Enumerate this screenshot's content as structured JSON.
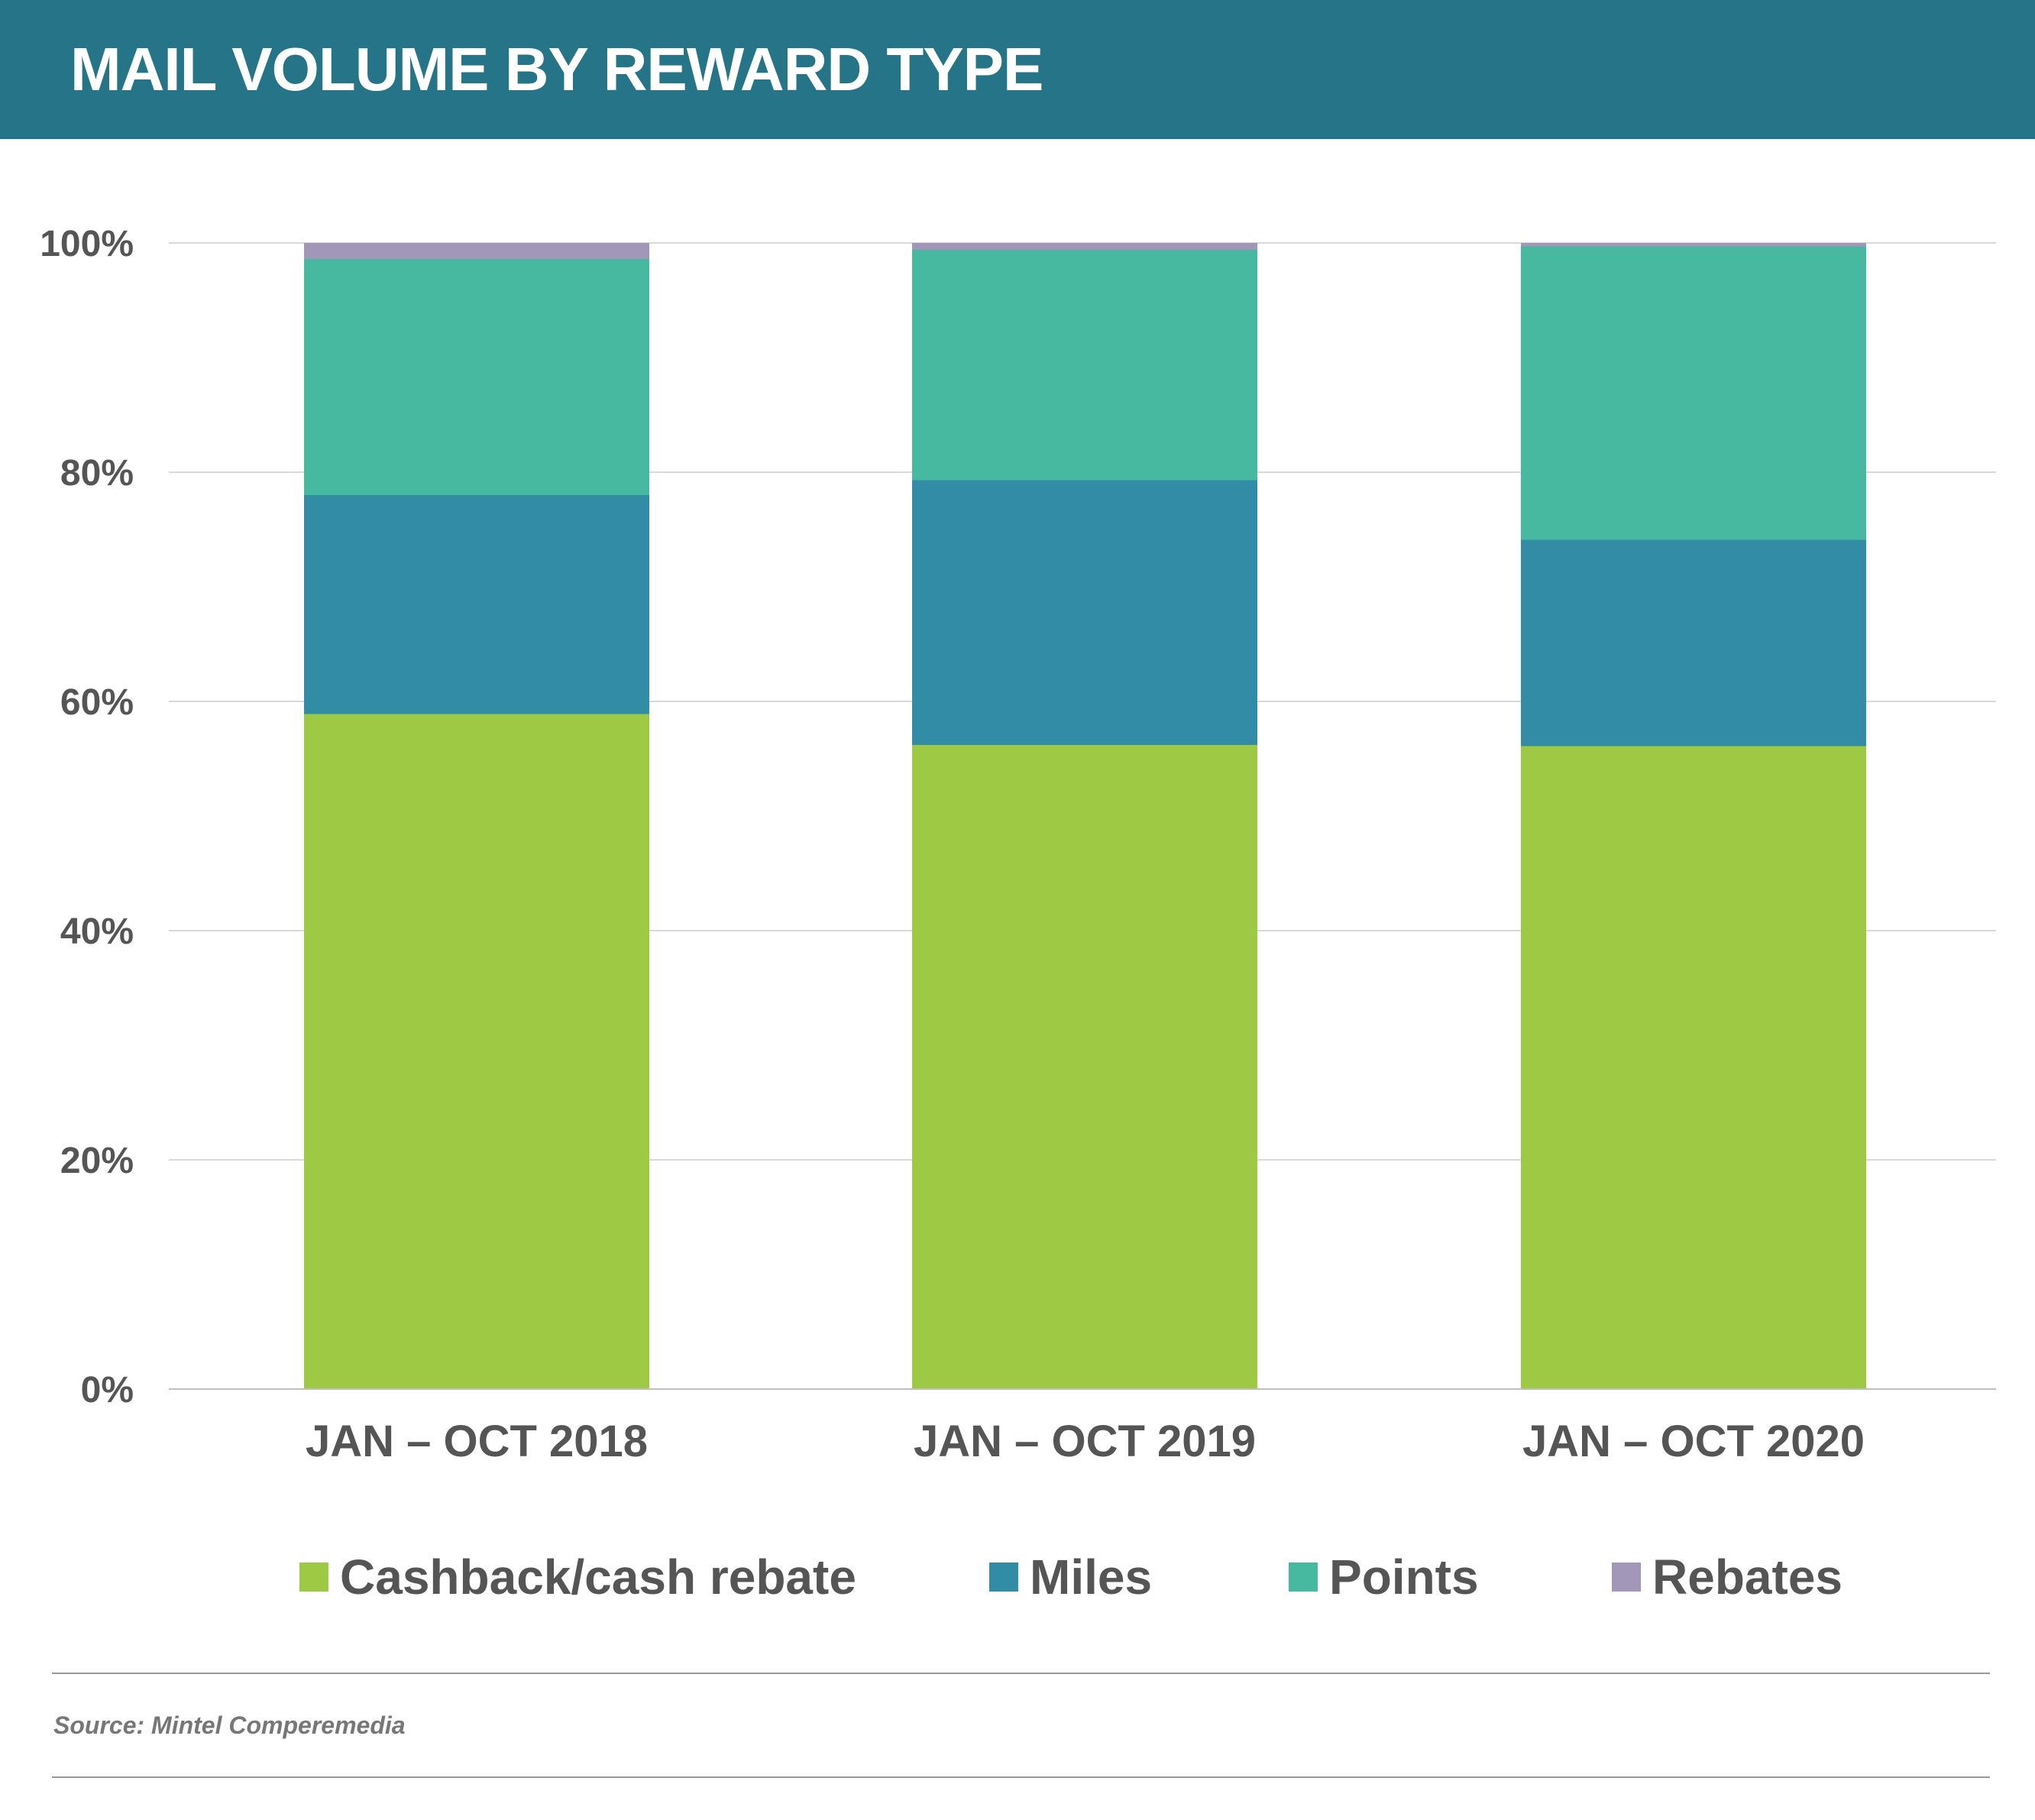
{
  "header": {
    "title": "MAIL VOLUME BY REWARD TYPE"
  },
  "chart_data": {
    "type": "bar",
    "stacked": true,
    "categories": [
      "JAN – OCT 2018",
      "JAN – OCT 2019",
      "JAN – OCT 2020"
    ],
    "series": [
      {
        "name": "Cashback/cash rebate",
        "color": "#9dc945",
        "values": [
          58.9,
          56.2,
          56.1
        ]
      },
      {
        "name": "Miles",
        "color": "#338ca6",
        "values": [
          19.1,
          23.1,
          18.0
        ]
      },
      {
        "name": "Points",
        "color": "#46b9a0",
        "values": [
          20.6,
          20.1,
          25.6
        ]
      },
      {
        "name": "Rebates",
        "color": "#a397b9",
        "values": [
          1.4,
          0.6,
          0.3
        ]
      }
    ],
    "yticks": [
      "0%",
      "20%",
      "40%",
      "60%",
      "80%",
      "100%"
    ],
    "ylim": [
      0,
      100
    ],
    "grid": true,
    "legend": "bottom"
  },
  "footer": {
    "source": "Source: Mintel Comperemedia"
  }
}
